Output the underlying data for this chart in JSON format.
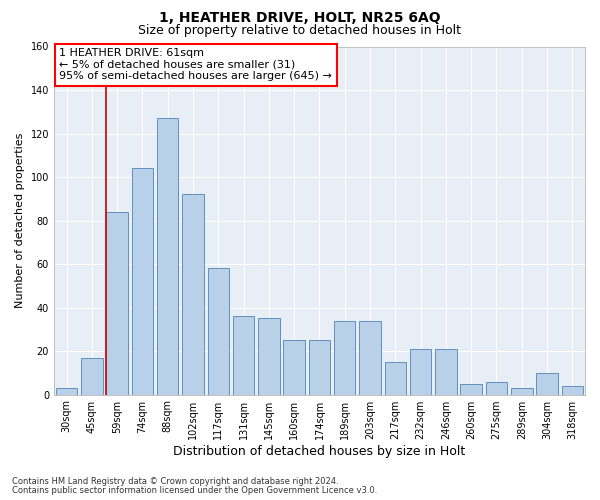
{
  "title": "1, HEATHER DRIVE, HOLT, NR25 6AQ",
  "subtitle": "Size of property relative to detached houses in Holt",
  "xlabel": "Distribution of detached houses by size in Holt",
  "ylabel": "Number of detached properties",
  "footnote1": "Contains HM Land Registry data © Crown copyright and database right 2024.",
  "footnote2": "Contains public sector information licensed under the Open Government Licence v3.0.",
  "bar_labels": [
    "30sqm",
    "45sqm",
    "59sqm",
    "74sqm",
    "88sqm",
    "102sqm",
    "117sqm",
    "131sqm",
    "145sqm",
    "160sqm",
    "174sqm",
    "189sqm",
    "203sqm",
    "217sqm",
    "232sqm",
    "246sqm",
    "260sqm",
    "275sqm",
    "289sqm",
    "304sqm",
    "318sqm"
  ],
  "bar_values": [
    3,
    17,
    84,
    104,
    127,
    92,
    58,
    36,
    35,
    25,
    25,
    34,
    34,
    15,
    21,
    21,
    5,
    6,
    3,
    10,
    4
  ],
  "bar_color": "#b8d0e8",
  "bar_edge_color": "#6090c0",
  "vline_color": "#cc0000",
  "vline_bar_index": 2,
  "annotation_line1": "1 HEATHER DRIVE: 61sqm",
  "annotation_line2": "← 5% of detached houses are smaller (31)",
  "annotation_line3": "95% of semi-detached houses are larger (645) →",
  "ylim": [
    0,
    160
  ],
  "yticks": [
    0,
    20,
    40,
    60,
    80,
    100,
    120,
    140,
    160
  ],
  "bg_color": "#e8eef6",
  "title_fontsize": 10,
  "subtitle_fontsize": 9,
  "tick_fontsize": 7,
  "ylabel_fontsize": 8,
  "xlabel_fontsize": 9,
  "annot_fontsize": 8,
  "footnote_fontsize": 6
}
